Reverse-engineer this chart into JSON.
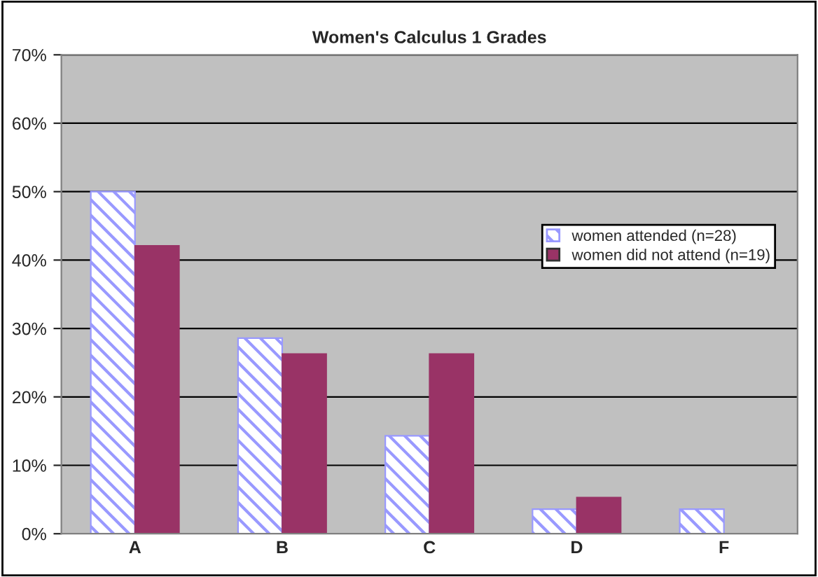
{
  "chart_data": {
    "type": "bar",
    "title": "Women's Calculus 1 Grades",
    "categories": [
      "A",
      "B",
      "C",
      "D",
      "F"
    ],
    "series": [
      {
        "name": "women attended (n=28)",
        "color": "#9999ff",
        "values": [
          50,
          28.6,
          14.3,
          3.6,
          3.6
        ]
      },
      {
        "name": "women did not attend (n=19)",
        "color": "#993366",
        "values": [
          42.1,
          26.3,
          26.3,
          5.3,
          0
        ]
      }
    ],
    "ylim": [
      0,
      70
    ],
    "yticks": [
      {
        "value": 0,
        "label": "0%"
      },
      {
        "value": 10,
        "label": "10%"
      },
      {
        "value": 20,
        "label": "20%"
      },
      {
        "value": 30,
        "label": "30%"
      },
      {
        "value": 40,
        "label": "40%"
      },
      {
        "value": 50,
        "label": "50%"
      },
      {
        "value": 60,
        "label": "60%"
      },
      {
        "value": 70,
        "label": "70%"
      }
    ],
    "grid": "y",
    "legend": "right"
  }
}
